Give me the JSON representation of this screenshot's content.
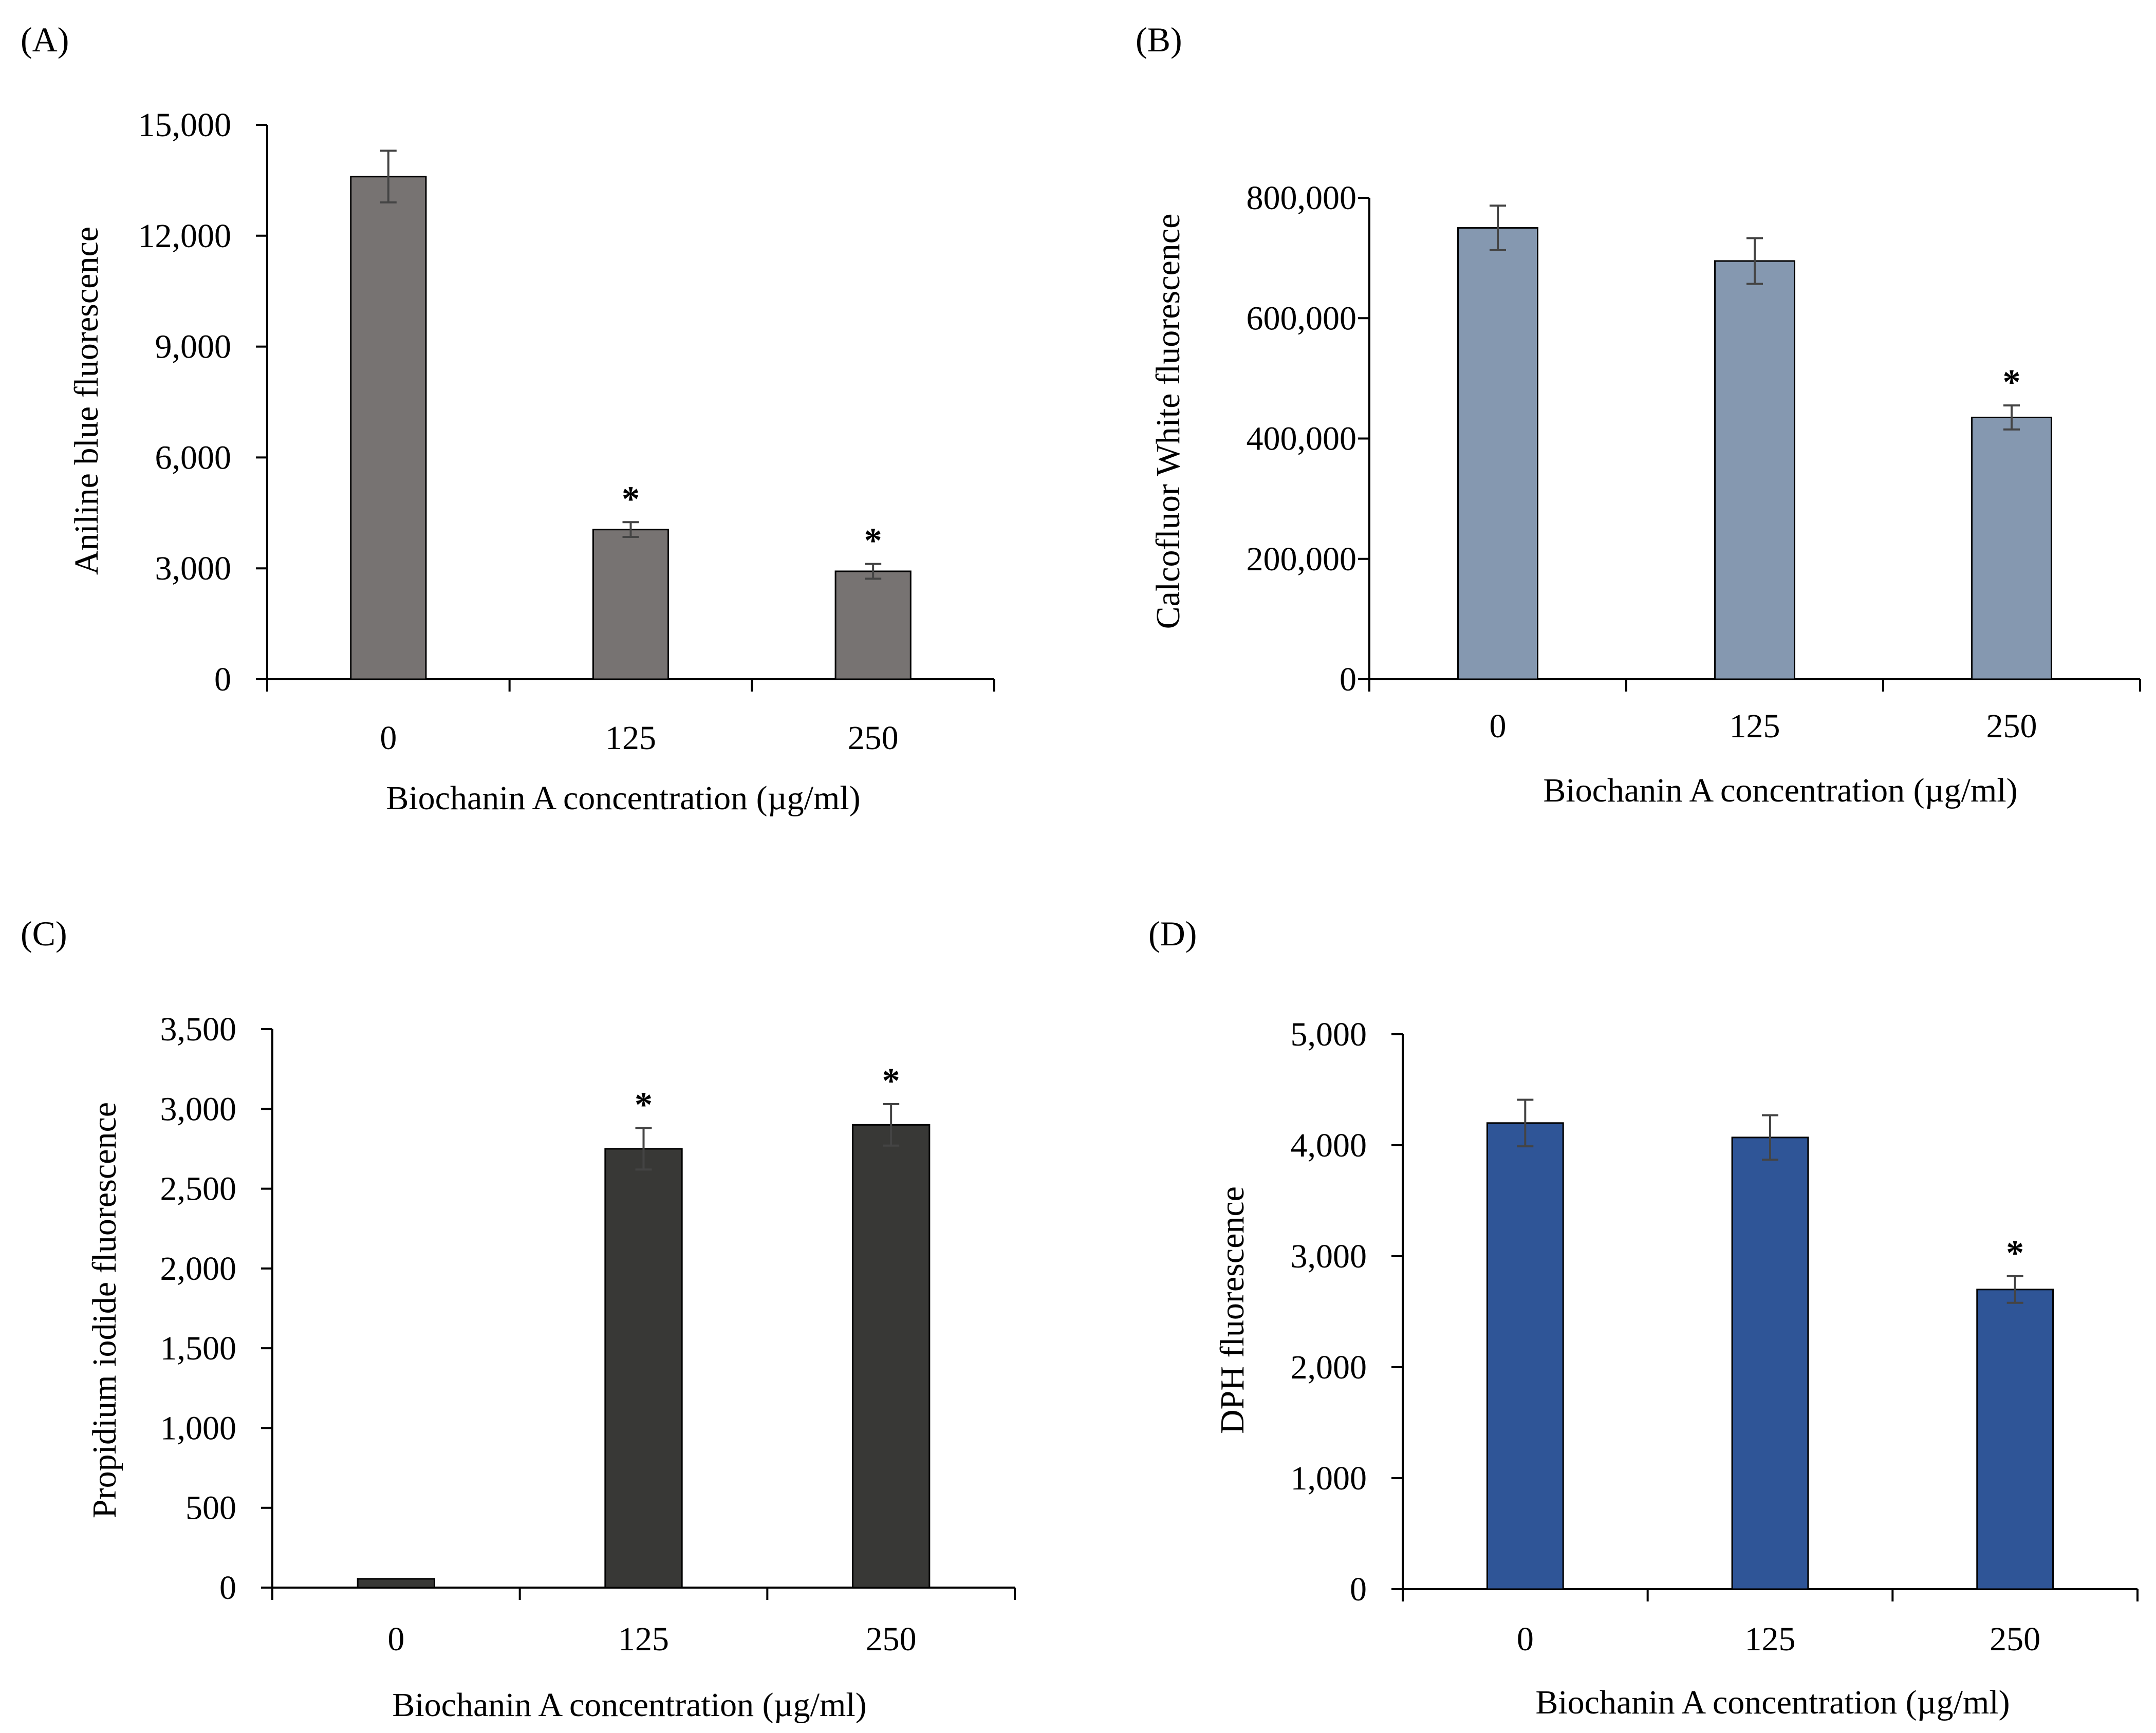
{
  "chart_data": [
    {
      "type": "bar",
      "panel_label": "(A)",
      "categories": [
        "0",
        "125",
        "250"
      ],
      "values": [
        13600,
        4050,
        2920
      ],
      "errors": [
        700,
        200,
        200
      ],
      "significance": [
        "",
        "*",
        "*"
      ],
      "xlabel": "Biochanin A concentration (µg/ml)",
      "ylabel": "Aniline blue fluorescence",
      "ylim": [
        0,
        15000
      ],
      "yticks": [
        0,
        3000,
        6000,
        9000,
        12000,
        15000
      ],
      "ytick_labels": [
        "0",
        "3,000",
        "6,000",
        "9,000",
        "12,000",
        "15,000"
      ],
      "bar_color": "#777372",
      "grid": false
    },
    {
      "type": "bar",
      "panel_label": "(B)",
      "categories": [
        "0",
        "125",
        "250"
      ],
      "values": [
        750000,
        695000,
        435000
      ],
      "errors": [
        37000,
        38000,
        20000
      ],
      "significance": [
        "",
        "",
        "*"
      ],
      "xlabel": "Biochanin A concentration (µg/ml)",
      "ylabel": "Calcofluor White fluorescence",
      "ylim": [
        0,
        800000
      ],
      "yticks": [
        0,
        200000,
        400000,
        600000,
        800000
      ],
      "ytick_labels": [
        "0",
        "200,000",
        "400,000",
        "600,000",
        "800,000"
      ],
      "bar_color": "#8598B0",
      "grid": false
    },
    {
      "type": "bar",
      "panel_label": "(C)",
      "categories": [
        "0",
        "125",
        "250"
      ],
      "values": [
        55,
        2750,
        2900
      ],
      "errors": [
        0,
        130,
        130
      ],
      "significance": [
        "",
        "*",
        "*"
      ],
      "xlabel": "Biochanin A concentration (µg/ml)",
      "ylabel": "Propidium iodide fluorescence",
      "ylim": [
        0,
        3500
      ],
      "yticks": [
        0,
        500,
        1000,
        1500,
        2000,
        2500,
        3000,
        3500
      ],
      "ytick_labels": [
        "0",
        "500",
        "1,000",
        "1,500",
        "2,000",
        "2,500",
        "3,000",
        "3,500"
      ],
      "bar_color": "#383836",
      "grid": false
    },
    {
      "type": "bar",
      "panel_label": "(D)",
      "categories": [
        "0",
        "125",
        "250"
      ],
      "values": [
        4200,
        4070,
        2700
      ],
      "errors": [
        210,
        200,
        120
      ],
      "significance": [
        "",
        "",
        "*"
      ],
      "xlabel": "Biochanin A concentration (µg/ml)",
      "ylabel": "DPH fluorescence",
      "ylim": [
        0,
        5000
      ],
      "yticks": [
        0,
        1000,
        2000,
        3000,
        4000,
        5000
      ],
      "ytick_labels": [
        "0",
        "1,000",
        "2,000",
        "3,000",
        "4,000",
        "5,000"
      ],
      "bar_color": "#2F5597",
      "grid": false
    }
  ]
}
